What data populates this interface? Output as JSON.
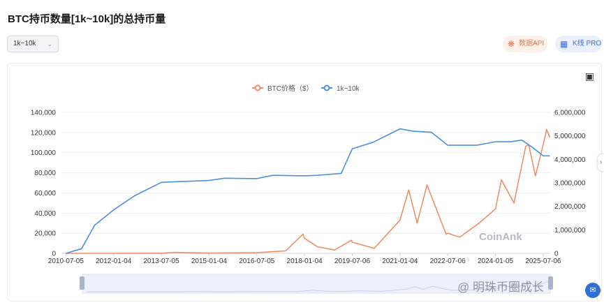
{
  "page": {
    "title": "BTC持币数量[1k~10k]的总持币量"
  },
  "toolbar": {
    "range_select": "1k~10k",
    "api_label": "数据API",
    "kline_label": "K线 PRO"
  },
  "watermark": {
    "coinank": "CoinAnk",
    "author": "@ 明珠币圈成长"
  },
  "colors": {
    "price": "#f08f63",
    "holdings": "#4a90e2"
  },
  "icons": {
    "select": "chevron-down-icon",
    "api": "api-icon",
    "kline": "kline-icon",
    "camera": "camera-icon",
    "chat": "chat-icon"
  },
  "chart_data": {
    "type": "line",
    "legend_position": "top",
    "grid": true,
    "categories": [
      "2010-07-05",
      "2012-01-04",
      "2013-07-05",
      "2015-01-04",
      "2016-07-05",
      "2018-01-04",
      "2019-07-06",
      "2021-01-04",
      "2022-07-06",
      "2024-01-05",
      "2025-07-06"
    ],
    "x_ticks": [
      "2010-07-05",
      "2012-01-04",
      "2013-07-05",
      "2015-01-04",
      "2016-07-05",
      "2018-01-04",
      "2019-07-06",
      "2021-01-04",
      "2022-07-06",
      "2024-01-05",
      "2025-07-06"
    ],
    "left_axis": {
      "ylim": [
        0,
        140000
      ],
      "ticks": [
        "0",
        "20,000",
        "40,000",
        "60,000",
        "80,000",
        "100,000",
        "120,000",
        "140,000"
      ]
    },
    "right_axis": {
      "ylim": [
        0,
        6000000
      ],
      "ticks": [
        "0",
        "1,000,000",
        "2,000,000",
        "3,000,000",
        "4,000,000",
        "5,000,000",
        "6,000,000"
      ]
    },
    "series": [
      {
        "name": "BTC价格（$）",
        "axis": "left",
        "color": "#f08f63",
        "x": [
          "2010-07-05",
          "2011-06-01",
          "2012-01-04",
          "2013-04-01",
          "2013-07-05",
          "2013-12-01",
          "2015-01-04",
          "2016-07-05",
          "2017-06-01",
          "2017-12-17",
          "2018-01-04",
          "2018-06-01",
          "2018-12-15",
          "2019-06-26",
          "2019-07-06",
          "2020-03-15",
          "2021-01-04",
          "2021-04-14",
          "2021-07-20",
          "2021-11-10",
          "2022-06-18",
          "2022-07-06",
          "2022-11-21",
          "2023-07-01",
          "2024-01-05",
          "2024-03-14",
          "2024-08-05",
          "2024-12-17",
          "2025-01-20",
          "2025-04-08",
          "2025-07-06",
          "2025-08-14",
          "2025-09-20"
        ],
        "values": [
          0,
          30,
          6,
          200,
          90,
          1000,
          270,
          670,
          2500,
          19000,
          15000,
          6500,
          3300,
          13000,
          11000,
          5000,
          33000,
          63000,
          30000,
          68000,
          19000,
          20000,
          16000,
          30000,
          44000,
          73000,
          50000,
          106000,
          108000,
          77000,
          108000,
          123000,
          115000
        ]
      },
      {
        "name": "1k~10k",
        "axis": "right",
        "color": "#4a90e2",
        "x": [
          "2010-07-05",
          "2011-01-01",
          "2011-06-01",
          "2012-01-04",
          "2012-09-01",
          "2013-07-05",
          "2014-01-01",
          "2015-01-04",
          "2015-07-01",
          "2016-07-05",
          "2017-01-01",
          "2018-01-04",
          "2018-06-01",
          "2019-03-01",
          "2019-07-06",
          "2020-03-01",
          "2021-01-04",
          "2021-06-01",
          "2022-01-01",
          "2022-07-06",
          "2023-06-01",
          "2024-01-05",
          "2024-07-01",
          "2024-11-01",
          "2025-03-01",
          "2025-07-06",
          "2025-09-20"
        ],
        "values": [
          0,
          200000,
          1200000,
          1850000,
          2450000,
          3020000,
          3050000,
          3100000,
          3200000,
          3180000,
          3320000,
          3300000,
          3320000,
          3400000,
          4450000,
          4730000,
          5300000,
          5200000,
          5150000,
          4600000,
          4600000,
          4750000,
          4750000,
          4820000,
          4520000,
          4150000,
          4150000
        ]
      }
    ]
  }
}
